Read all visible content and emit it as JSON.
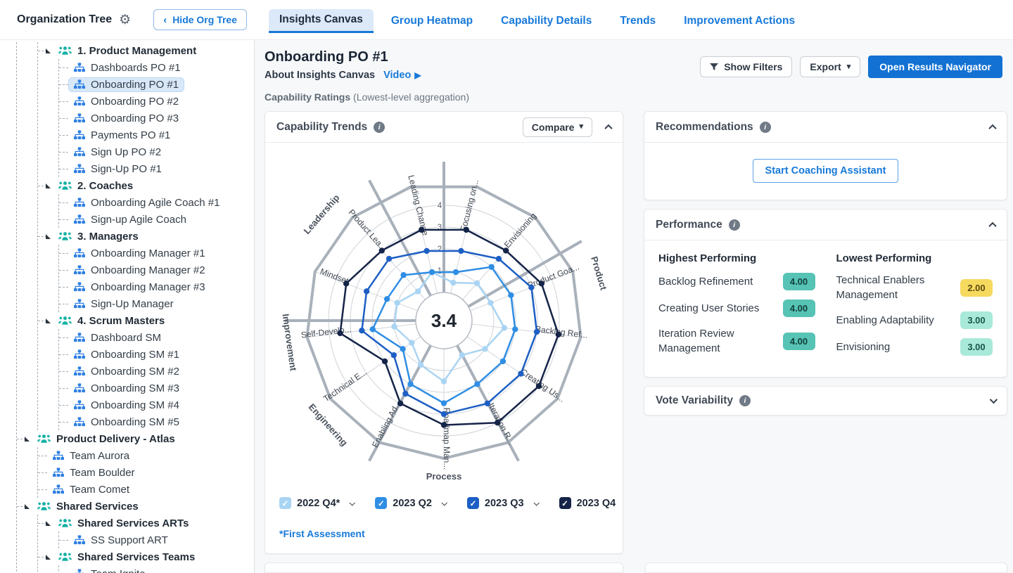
{
  "header": {
    "org_tree_title": "Organization Tree",
    "hide_button_label": "Hide Org Tree",
    "tabs": [
      {
        "label": "Insights Canvas",
        "active": true
      },
      {
        "label": "Group Heatmap",
        "active": false
      },
      {
        "label": "Capability Details",
        "active": false
      },
      {
        "label": "Trends",
        "active": false
      },
      {
        "label": "Improvement Actions",
        "active": false
      }
    ]
  },
  "sidebar": {
    "items": [
      {
        "label": "1. Product Management",
        "depth": 1,
        "type": "group"
      },
      {
        "label": "Dashboards PO #1",
        "depth": 2,
        "type": "leaf"
      },
      {
        "label": "Onboarding PO #1",
        "depth": 2,
        "type": "leaf",
        "selected": true
      },
      {
        "label": "Onboarding PO #2",
        "depth": 2,
        "type": "leaf"
      },
      {
        "label": "Onboarding PO #3",
        "depth": 2,
        "type": "leaf"
      },
      {
        "label": "Payments PO #1",
        "depth": 2,
        "type": "leaf"
      },
      {
        "label": "Sign Up PO #2",
        "depth": 2,
        "type": "leaf"
      },
      {
        "label": "Sign-Up PO #1",
        "depth": 2,
        "type": "leaf"
      },
      {
        "label": "2. Coaches",
        "depth": 1,
        "type": "group"
      },
      {
        "label": "Onboarding Agile Coach #1",
        "depth": 2,
        "type": "leaf"
      },
      {
        "label": "Sign-up Agile Coach",
        "depth": 2,
        "type": "leaf"
      },
      {
        "label": "3. Managers",
        "depth": 1,
        "type": "group"
      },
      {
        "label": "Onboarding Manager #1",
        "depth": 2,
        "type": "leaf"
      },
      {
        "label": "Onboarding Manager #2",
        "depth": 2,
        "type": "leaf"
      },
      {
        "label": "Onboarding Manager #3",
        "depth": 2,
        "type": "leaf"
      },
      {
        "label": "Sign-Up Manager",
        "depth": 2,
        "type": "leaf"
      },
      {
        "label": "4. Scrum Masters",
        "depth": 1,
        "type": "group"
      },
      {
        "label": "Dashboard SM",
        "depth": 2,
        "type": "leaf"
      },
      {
        "label": "Onboarding SM #1",
        "depth": 2,
        "type": "leaf"
      },
      {
        "label": "Onboarding SM #2",
        "depth": 2,
        "type": "leaf"
      },
      {
        "label": "Onboarding SM #3",
        "depth": 2,
        "type": "leaf"
      },
      {
        "label": "Onboarding SM #4",
        "depth": 2,
        "type": "leaf"
      },
      {
        "label": "Onboarding SM #5",
        "depth": 2,
        "type": "leaf"
      },
      {
        "label": "Product Delivery - Atlas",
        "depth": 0,
        "type": "group"
      },
      {
        "label": "Team Aurora",
        "depth": 1,
        "type": "leaf"
      },
      {
        "label": "Team Boulder",
        "depth": 1,
        "type": "leaf"
      },
      {
        "label": "Team Comet",
        "depth": 1,
        "type": "leaf"
      },
      {
        "label": "Shared Services",
        "depth": 0,
        "type": "group"
      },
      {
        "label": "Shared Services ARTs",
        "depth": 1,
        "type": "group"
      },
      {
        "label": "SS Support ART",
        "depth": 2,
        "type": "leaf"
      },
      {
        "label": "Shared Services Teams",
        "depth": 1,
        "type": "group"
      },
      {
        "label": "Team Ignite",
        "depth": 2,
        "type": "leaf"
      }
    ],
    "group_icon_color": "#14b0a5",
    "leaf_icon_color": "#2e7fe2"
  },
  "main": {
    "title": "Onboarding PO #1",
    "subtitle": "About Insights Canvas",
    "video_label": "Video",
    "ratings_label": "Capability Ratings",
    "ratings_note": "(Lowest-level aggregation)",
    "buttons": {
      "show_filters": "Show Filters",
      "export": "Export",
      "open_results": "Open Results Navigator"
    }
  },
  "chart_card": {
    "title": "Capability Trends",
    "compare_label": "Compare",
    "footnote": "*First Assessment",
    "legend": [
      {
        "label": "2022 Q4*",
        "color": "#a9d4f3",
        "checked": true,
        "dropdown": true
      },
      {
        "label": "2023 Q2",
        "color": "#2f8ee4",
        "checked": true,
        "dropdown": true
      },
      {
        "label": "2023 Q3",
        "color": "#1d5fc4",
        "checked": true,
        "dropdown": true
      },
      {
        "label": "2023 Q4",
        "color": "#152448",
        "checked": true,
        "dropdown": false
      }
    ]
  },
  "chart_data": {
    "type": "radar",
    "title": "Capability Trends",
    "center_value": "3.4",
    "axis_min": 0,
    "axis_max": 4,
    "ring_ticks": [
      1,
      2,
      3,
      4
    ],
    "grid": true,
    "legend_position": "bottom",
    "categories": [
      "Focusing on...",
      "Envisioning",
      "Product Goa...",
      "Backlog Ref...",
      "Creating Us...",
      "Iteration R...",
      "Roadmap Man...",
      "Enabling Ad...",
      "Technical E...",
      "Self-Develo...",
      "Mindset",
      "Product Lea...",
      "Leading Change"
    ],
    "groups": [
      {
        "label": "Leadership",
        "angle": 311
      },
      {
        "label": "Product",
        "angle": 73
      },
      {
        "label": "Process",
        "angle": 180
      },
      {
        "label": "Engineering",
        "angle": 228
      },
      {
        "label": "Improvement",
        "angle": 262
      }
    ],
    "divider_angles": [
      0,
      60,
      152,
      208,
      270,
      332
    ],
    "series": [
      {
        "name": "2022 Q4*",
        "color": "#a9d4f3",
        "values": [
          0.5,
          1,
          1,
          1.5,
          1,
          0.5,
          1.5,
          1,
          0.5,
          1,
          1,
          0.5,
          1
        ]
      },
      {
        "name": "2023 Q2",
        "color": "#2f8ee4",
        "values": [
          1,
          2,
          2,
          2,
          2,
          2,
          2.5,
          2,
          1,
          2,
          1.5,
          1.5,
          1
        ]
      },
      {
        "name": "2023 Q3",
        "color": "#1d5fc4",
        "values": [
          2,
          2.5,
          3,
          3,
          3,
          3,
          3,
          2.5,
          1.5,
          2.5,
          2.5,
          2.5,
          2
        ]
      },
      {
        "name": "2023 Q4",
        "color": "#152448",
        "values": [
          3,
          3,
          3.5,
          4,
          4,
          4,
          3.5,
          3,
          2,
          3.5,
          3.5,
          3,
          3
        ]
      }
    ]
  },
  "panels": {
    "recommendations": {
      "title": "Recommendations",
      "button": "Start Coaching Assistant"
    },
    "performance": {
      "title": "Performance",
      "highest": {
        "heading": "Highest Performing",
        "rows": [
          {
            "label": "Backlog Refinement",
            "value": "4.00",
            "bg": "#56c3b5",
            "fg": "#123f3a"
          },
          {
            "label": "Creating User Stories",
            "value": "4.00",
            "bg": "#56c3b5",
            "fg": "#123f3a"
          },
          {
            "label": "Iteration Review Management",
            "value": "4.00",
            "bg": "#56c3b5",
            "fg": "#123f3a"
          }
        ]
      },
      "lowest": {
        "heading": "Lowest Performing",
        "rows": [
          {
            "label": "Technical Enablers Management",
            "value": "2.00",
            "bg": "#f6d95f",
            "fg": "#5b4b10"
          },
          {
            "label": "Enabling Adaptability",
            "value": "3.00",
            "bg": "#a9e9da",
            "fg": "#175448"
          },
          {
            "label": "Envisioning",
            "value": "3.00",
            "bg": "#a9e9da",
            "fg": "#175448"
          }
        ]
      }
    },
    "vote_variability": {
      "title": "Vote Variability"
    }
  }
}
